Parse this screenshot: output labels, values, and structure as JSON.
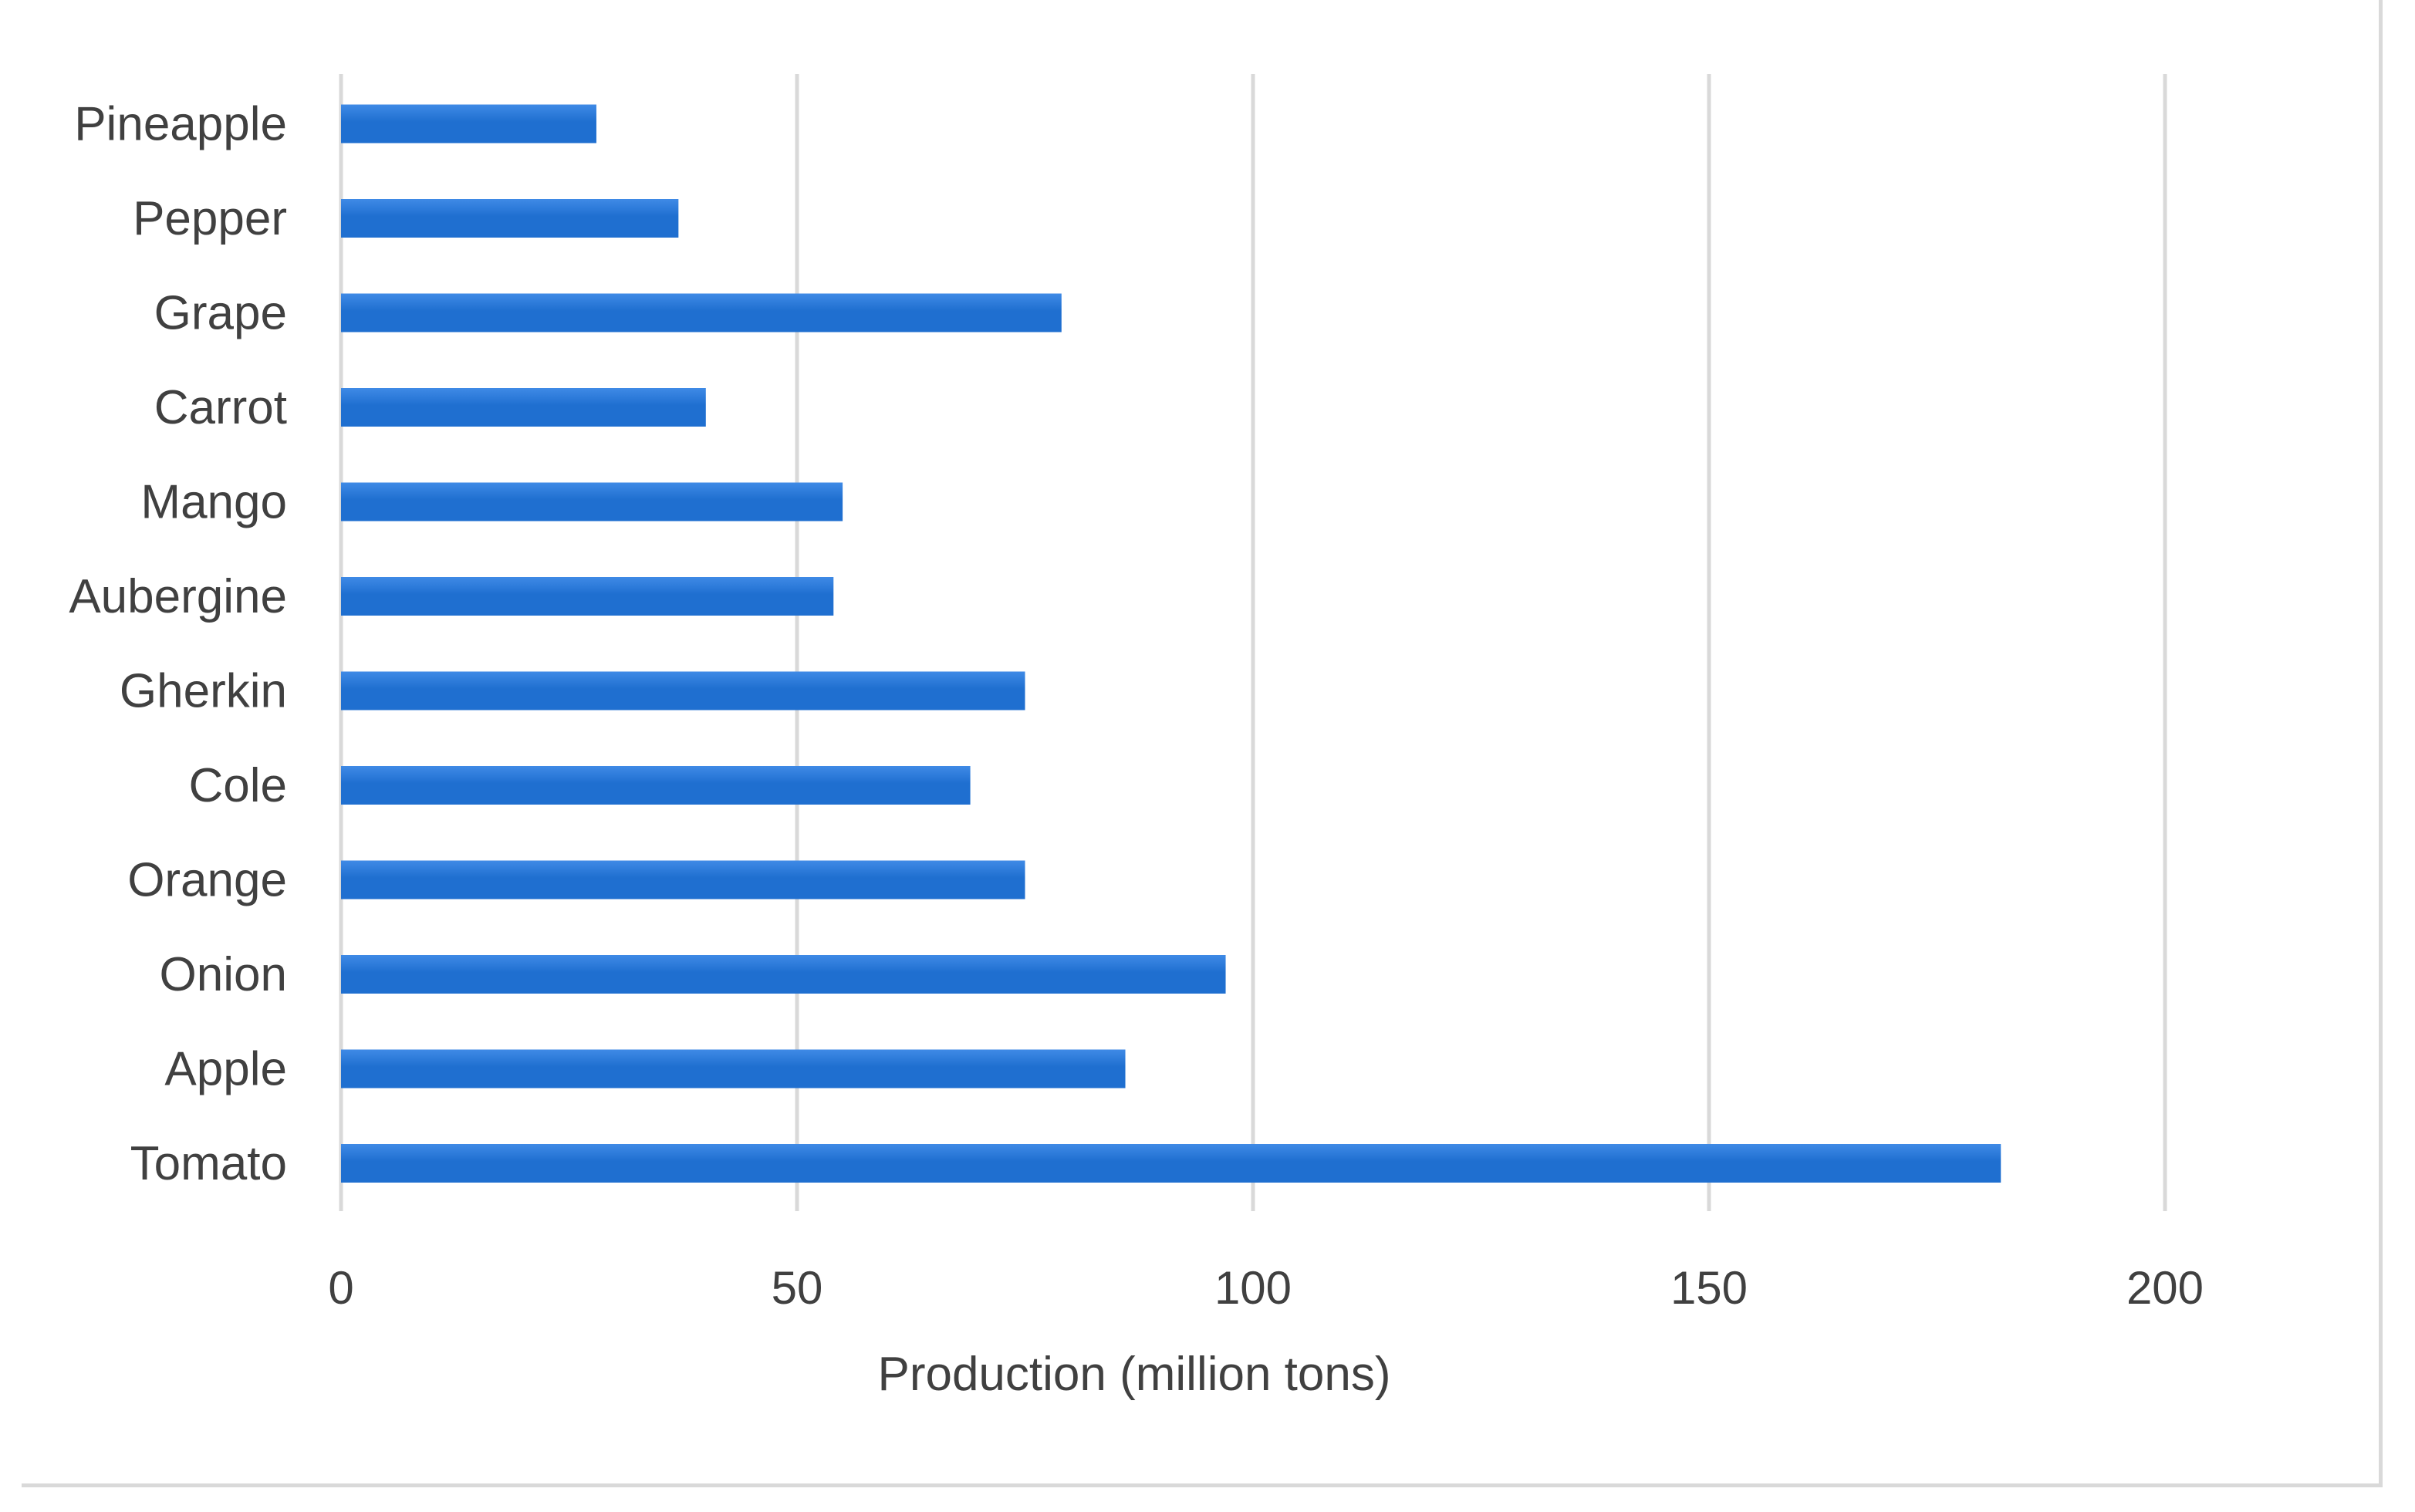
{
  "chart_data": {
    "type": "bar",
    "orientation": "horizontal",
    "categories": [
      "Tomato",
      "Apple",
      "Onion",
      "Orange",
      "Cole",
      "Gherkin",
      "Aubergine",
      "Mango",
      "Carrot",
      "Grape",
      "Pepper",
      "Pineapple"
    ],
    "values": [
      182,
      86,
      97,
      75,
      69,
      75,
      54,
      55,
      40,
      79,
      37,
      28
    ],
    "xlabel": "Production (million tons)",
    "ylabel": "",
    "xlim": [
      0,
      200
    ],
    "xticks": [
      "0",
      "50",
      "100",
      "150",
      "200"
    ],
    "grid": "vertical",
    "legend": "none",
    "bar_color": "#1f6fd0",
    "bar_highlight": "#3f8ae6"
  }
}
